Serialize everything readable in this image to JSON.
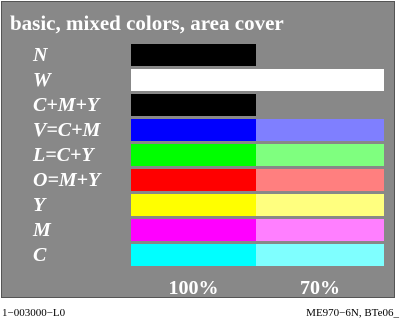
{
  "title": "basic, mixed colors, area cover",
  "rows": [
    {
      "label": "N",
      "c100": "#000000",
      "c70": null
    },
    {
      "label": "W",
      "c100": "#ffffff",
      "c70": "#ffffff"
    },
    {
      "label": "C+M+Y",
      "c100": "#000000",
      "c70": null
    },
    {
      "label": "V=C+M",
      "c100": "#0000ff",
      "c70": "#7f7fff"
    },
    {
      "label": "L=C+Y",
      "c100": "#00ff00",
      "c70": "#7fff7f"
    },
    {
      "label": "O=M+Y",
      "c100": "#ff0000",
      "c70": "#ff7f7f"
    },
    {
      "label": "Y",
      "c100": "#ffff00",
      "c70": "#ffff7f"
    },
    {
      "label": "M",
      "c100": "#ff00ff",
      "c70": "#ff7fff"
    },
    {
      "label": "C",
      "c100": "#00ffff",
      "c70": "#7fffff"
    }
  ],
  "columns": {
    "c100": "100%",
    "c70": "70%"
  },
  "footer": {
    "left": "1−003000−L0",
    "right": "ME970−6N, BTe06_"
  }
}
